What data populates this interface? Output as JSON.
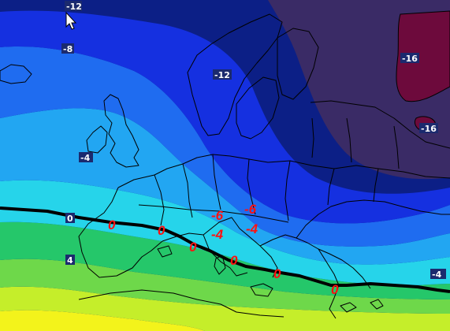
{
  "map": {
    "kind": "temperature-contour-map",
    "region": "Europe",
    "colors": {
      "deep_cold": "#3a2b66",
      "darkest_spot": "#6d0a3c",
      "dark_blue": "#0c1f86",
      "blue": "#1530e0",
      "mid_blue": "#1f6cf0",
      "light_blue": "#22a6f2",
      "cyan": "#26d4ea",
      "green": "#25c76a",
      "light_green": "#6ed84a",
      "yellow_green": "#c5ee2a",
      "yellow": "#f3f31b",
      "zero_line": "#000000",
      "border_lines": "#000000",
      "red_labels": "#ff1010"
    },
    "contour_labels": [
      "-12",
      "-8",
      "-12",
      "-16",
      "-16",
      "-4",
      "0",
      "4",
      "-4"
    ],
    "red_labels": [
      "0",
      "0",
      "0",
      "0",
      "0",
      "0",
      "-6",
      "-6",
      "-4",
      "-4"
    ]
  },
  "cursor": {
    "icon": "mouse-pointer-icon"
  }
}
